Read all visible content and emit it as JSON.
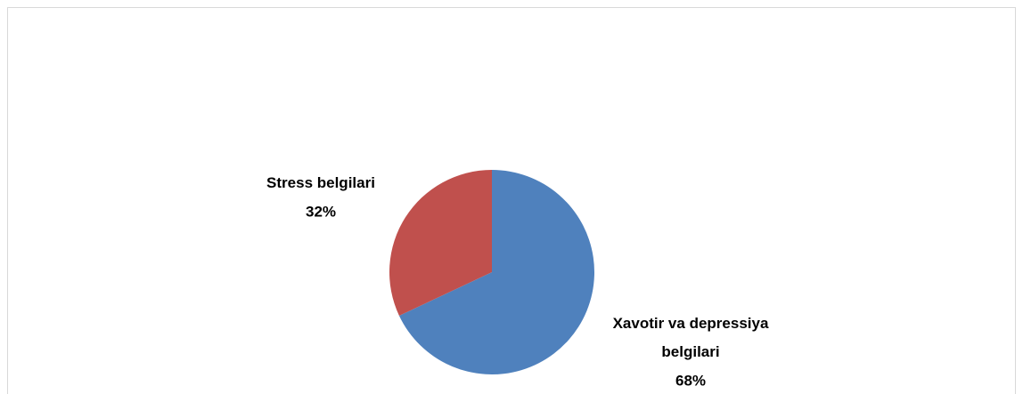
{
  "chart_data": {
    "type": "pie",
    "categories": [
      "Xavotir va depressiya belgilari",
      "Stress belgilari"
    ],
    "values": [
      68,
      32
    ],
    "value_labels": [
      "68%",
      "32%"
    ],
    "colors": [
      "#4f81bd",
      "#c0504d"
    ]
  }
}
